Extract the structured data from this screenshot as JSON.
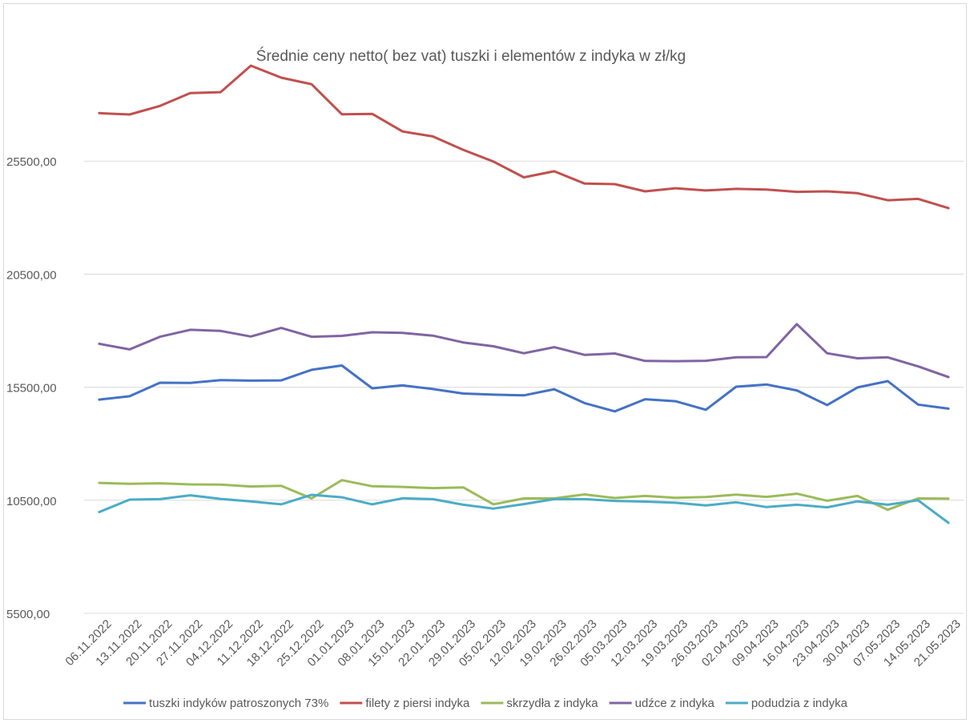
{
  "chart_data": {
    "type": "line",
    "title": "Średnie ceny netto( bez vat) tuszki i elementów z indyka w zł/kg",
    "xlabel": "",
    "ylabel": "",
    "ylim": [
      5500,
      30500
    ],
    "yticks": [
      5500,
      10500,
      15500,
      20500,
      25500
    ],
    "ytick_labels": [
      "5500,00",
      "10500,00",
      "15500,00",
      "20500,00",
      "25500,00"
    ],
    "grid": true,
    "legend_position": "bottom",
    "categories": [
      "06.11.2022",
      "13.11.2022",
      "20.11.2022",
      "27.11.2022",
      "04.12.2022",
      "11.12.2022",
      "18.12.2022",
      "25.12.2022",
      "01.01.2023",
      "08.01.2023",
      "15.01.2023",
      "22.01.2023",
      "29.01.2023",
      "05.02.2023",
      "12.02.2023",
      "19.02.2023",
      "26.02.2023",
      "05.03.2023",
      "12.03.2023",
      "19.03.2023",
      "26.03.2023",
      "02.04.2023",
      "09.04.2023",
      "16.04.2023",
      "23.04.2023",
      "30.04.2023",
      "07.05.2023",
      "14.05.2023",
      "21.05.2023"
    ],
    "series": [
      {
        "name": "tuszki indyków patroszonych 73%",
        "color": "#4472c4",
        "values": [
          14950,
          15100,
          15700,
          15690,
          15810,
          15790,
          15800,
          16270,
          16460,
          15450,
          15580,
          15420,
          15220,
          15170,
          15140,
          15410,
          14800,
          14430,
          14970,
          14880,
          14500,
          15520,
          15620,
          15360,
          14710,
          15490,
          15770,
          14730,
          14550
        ]
      },
      {
        "name": "filety z piersi indyka",
        "color": "#c0504d",
        "values": [
          27620,
          27560,
          27940,
          28510,
          28550,
          29720,
          29190,
          28900,
          27570,
          27590,
          26810,
          26590,
          26000,
          25480,
          24780,
          25050,
          24510,
          24480,
          24160,
          24300,
          24200,
          24270,
          24240,
          24140,
          24160,
          24080,
          23770,
          23830,
          23420
        ]
      },
      {
        "name": "skrzydła z indyka",
        "color": "#9bbb59",
        "values": [
          11270,
          11230,
          11250,
          11200,
          11190,
          11110,
          11140,
          10580,
          11390,
          11120,
          11090,
          11040,
          11070,
          10320,
          10580,
          10580,
          10760,
          10600,
          10690,
          10610,
          10640,
          10750,
          10650,
          10790,
          10480,
          10690,
          10080,
          10580,
          10570
        ]
      },
      {
        "name": "udźce z indyka",
        "color": "#8064a2",
        "values": [
          17420,
          17170,
          17730,
          18040,
          17990,
          17740,
          18120,
          17730,
          17770,
          17930,
          17900,
          17780,
          17480,
          17310,
          17000,
          17270,
          16930,
          16990,
          16660,
          16650,
          16670,
          16820,
          16830,
          18290,
          17000,
          16780,
          16820,
          16420,
          15950
        ]
      },
      {
        "name": "podudzia z indyka",
        "color": "#4bacc6",
        "values": [
          9980,
          10530,
          10550,
          10720,
          10560,
          10450,
          10320,
          10740,
          10630,
          10320,
          10590,
          10550,
          10300,
          10130,
          10330,
          10550,
          10550,
          10470,
          10440,
          10390,
          10270,
          10410,
          10200,
          10300,
          10190,
          10450,
          10300,
          10500,
          9500
        ]
      }
    ]
  }
}
